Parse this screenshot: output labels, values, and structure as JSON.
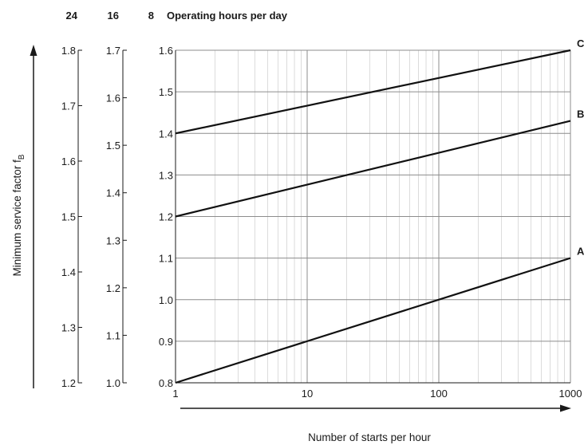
{
  "header": {
    "col1": "24",
    "col2": "16",
    "col3": "8",
    "title": "Operating hours per day"
  },
  "chart_data": {
    "type": "line",
    "xlabel": "Number of starts per hour",
    "ylabel_main": "Minimum service factor f",
    "ylabel_sub": "B",
    "x_scale": "log",
    "xlim": [
      1,
      1000
    ],
    "x_ticks": [
      1,
      10,
      100,
      1000
    ],
    "x_tick_labels": [
      "1",
      "10",
      "100",
      "1000"
    ],
    "grid": true,
    "y_axes": [
      {
        "hours_per_day": "24",
        "ylim": [
          1.2,
          1.8
        ],
        "ticks": [
          "1.2",
          "1.3",
          "1.4",
          "1.5",
          "1.6",
          "1.7",
          "1.8"
        ]
      },
      {
        "hours_per_day": "16",
        "ylim": [
          1.0,
          1.7
        ],
        "ticks": [
          "1.0",
          "1.1",
          "1.2",
          "1.3",
          "1.4",
          "1.5",
          "1.6",
          "1.7"
        ]
      },
      {
        "hours_per_day": "8",
        "ylim": [
          0.8,
          1.6
        ],
        "ticks": [
          "0.8",
          "0.9",
          "1.0",
          "1.1",
          "1.2",
          "1.3",
          "1.4",
          "1.5",
          "1.6"
        ]
      }
    ],
    "series": [
      {
        "name": "C",
        "x": [
          1,
          1000
        ],
        "y": [
          1.4,
          1.6
        ]
      },
      {
        "name": "B",
        "x": [
          1,
          1000
        ],
        "y": [
          1.2,
          1.43
        ]
      },
      {
        "name": "A",
        "x": [
          1,
          1000
        ],
        "y": [
          0.8,
          1.1
        ]
      }
    ]
  }
}
